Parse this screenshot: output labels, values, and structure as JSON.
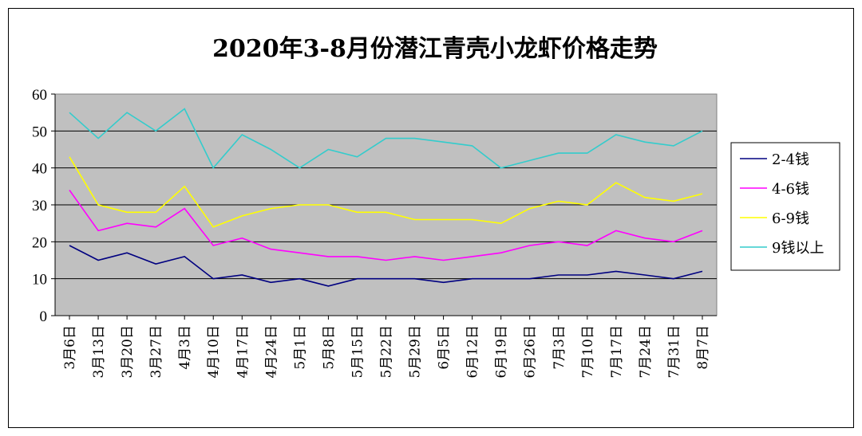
{
  "chart_data": {
    "type": "line",
    "title": "2020年3-8月份潜江青壳小龙虾价格走势",
    "xlabel": "",
    "ylabel": "",
    "ylim": [
      0,
      60
    ],
    "yticks": [
      0,
      10,
      20,
      30,
      40,
      50,
      60
    ],
    "grid": true,
    "legend_position": "right",
    "plot_background": "#c0c0c0",
    "categories": [
      "3月6日",
      "3月13日",
      "3月20日",
      "3月27日",
      "4月3日",
      "4月10日",
      "4月17日",
      "4月24日",
      "5月1日",
      "5月8日",
      "5月15日",
      "5月22日",
      "5月29日",
      "6月5日",
      "6月12日",
      "6月19日",
      "6月26日",
      "7月3日",
      "7月10日",
      "7月17日",
      "7月24日",
      "7月31日",
      "8月7日"
    ],
    "series": [
      {
        "name": "2-4钱",
        "color": "#000080",
        "values": [
          19,
          15,
          17,
          14,
          16,
          10,
          11,
          9,
          10,
          8,
          10,
          10,
          10,
          9,
          10,
          10,
          10,
          11,
          11,
          12,
          11,
          10,
          12
        ]
      },
      {
        "name": "4-6钱",
        "color": "#ff00ff",
        "values": [
          34,
          23,
          25,
          24,
          29,
          19,
          21,
          18,
          17,
          16,
          16,
          15,
          16,
          15,
          16,
          17,
          19,
          20,
          19,
          23,
          21,
          20,
          23
        ]
      },
      {
        "name": "6-9钱",
        "color": "#ffff00",
        "values": [
          43,
          30,
          28,
          28,
          35,
          24,
          27,
          29,
          30,
          30,
          28,
          28,
          26,
          26,
          26,
          25,
          29,
          31,
          30,
          36,
          32,
          31,
          33
        ]
      },
      {
        "name": "9钱以上",
        "color": "#33cccc",
        "values": [
          55,
          48,
          55,
          50,
          56,
          40,
          49,
          45,
          40,
          45,
          43,
          48,
          48,
          47,
          46,
          40,
          42,
          44,
          44,
          49,
          47,
          46,
          50
        ]
      }
    ]
  }
}
